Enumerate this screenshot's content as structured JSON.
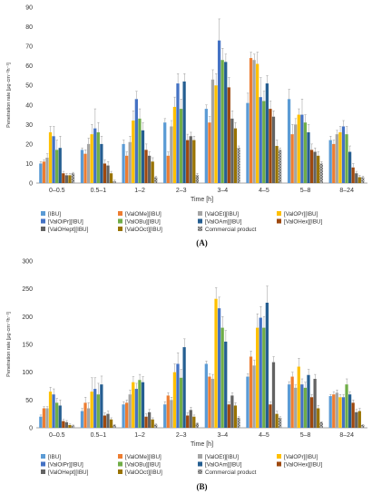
{
  "colors": {
    "IBU": "#5b9bd5",
    "ValOMe": "#ed7d31",
    "ValOEt": "#a5a5a5",
    "ValOPr": "#ffc000",
    "ValOiPr": "#4472c4",
    "ValOBu": "#70ad47",
    "ValOAm": "#255e91",
    "ValOHex": "#9e480e",
    "ValOHept": "#636363",
    "ValOOct": "#997300",
    "Commercial": "#5a5a5a"
  },
  "chart_data": [
    {
      "panel_label": "(A)",
      "type": "bar",
      "ylabel": "Penetration rate [μg·cm⁻²h⁻¹]",
      "xlabel": "Time [h]",
      "ylim": [
        0,
        90
      ],
      "yticks": [
        0,
        10,
        20,
        30,
        40,
        50,
        60,
        70,
        80,
        90
      ],
      "grid": false,
      "legend_position": "bottom",
      "categories": [
        "0–0.5",
        "0.5–1",
        "1–2",
        "2–3",
        "3–4",
        "4–5",
        "5–8",
        "8–24"
      ],
      "series": [
        {
          "name": "[IBU]",
          "values": [
            10,
            17,
            20,
            31,
            38,
            41,
            43,
            22
          ],
          "errors": [
            1,
            1,
            2,
            2,
            2,
            5,
            5,
            2
          ]
        },
        {
          "name": "[ValOMe][IBU]",
          "values": [
            11,
            15,
            14,
            14,
            31,
            64,
            25,
            20
          ],
          "errors": [
            1,
            2,
            2,
            2,
            3,
            3,
            5,
            2
          ]
        },
        {
          "name": "[ValOEt][IBU]",
          "values": [
            13,
            20,
            21,
            29,
            53,
            63,
            30,
            25
          ],
          "errors": [
            2,
            3,
            3,
            3,
            5,
            3,
            3,
            2
          ]
        },
        {
          "name": "[ValOPr][IBU]",
          "values": [
            26,
            25,
            32,
            39,
            50,
            61,
            35,
            26
          ],
          "errors": [
            3,
            5,
            5,
            5,
            6,
            6,
            3,
            3
          ]
        },
        {
          "name": "[ValOiPr][IBU]",
          "values": [
            24,
            28,
            43,
            51,
            73,
            44,
            35,
            29
          ],
          "errors": [
            5,
            10,
            4,
            5,
            11,
            10,
            8,
            3
          ]
        },
        {
          "name": "[ValOBu][IBU]",
          "values": [
            17,
            26,
            33,
            38,
            63,
            42,
            31,
            25
          ],
          "errors": [
            5,
            5,
            5,
            5,
            6,
            5,
            4,
            4
          ]
        },
        {
          "name": "[ValOAm][IBU]",
          "values": [
            18,
            20,
            27,
            52,
            62,
            51,
            26,
            16
          ],
          "errors": [
            6,
            4,
            4,
            4,
            4,
            4,
            4,
            3
          ]
        },
        {
          "name": "[ValOHex][IBU]",
          "values": [
            5,
            10,
            17,
            22,
            49,
            38,
            17,
            8
          ],
          "errors": [
            1,
            2,
            3,
            3,
            5,
            4,
            3,
            2
          ]
        },
        {
          "name": "[ValOHept][IBU]",
          "values": [
            4,
            9,
            14,
            24,
            33,
            34,
            16,
            5
          ],
          "errors": [
            1,
            2,
            2,
            2,
            4,
            3,
            2,
            1
          ]
        },
        {
          "name": "[ValOOct][IBU]",
          "values": [
            4,
            5,
            11,
            22,
            28,
            19,
            14,
            3
          ],
          "errors": [
            1,
            1,
            2,
            2,
            3,
            3,
            2,
            1
          ]
        },
        {
          "name": "Commercial product",
          "values": [
            5,
            1,
            3,
            4,
            18,
            17,
            10,
            3
          ],
          "errors": [
            0.5,
            0.5,
            0.5,
            1,
            1,
            1,
            1,
            0.5
          ]
        }
      ]
    },
    {
      "panel_label": "(B)",
      "type": "bar",
      "ylabel": "Penetration rate [μg·cm⁻²h⁻¹]",
      "xlabel": "Time [h]",
      "ylim": [
        0,
        300
      ],
      "yticks": [
        0,
        50,
        100,
        150,
        200,
        250,
        300
      ],
      "grid": false,
      "legend_position": "bottom",
      "categories": [
        "0–0.5",
        "0.5–1",
        "1–2",
        "2–3",
        "3–4",
        "4–5",
        "5–8",
        "8–24"
      ],
      "series": [
        {
          "name": "[IBU]",
          "values": [
            20,
            30,
            42,
            42,
            115,
            92,
            78,
            57
          ],
          "errors": [
            3,
            5,
            5,
            5,
            5,
            5,
            5,
            3
          ]
        },
        {
          "name": "[ValOMe][IBU]",
          "values": [
            35,
            45,
            45,
            58,
            92,
            128,
            92,
            60
          ],
          "errors": [
            3,
            10,
            5,
            5,
            5,
            10,
            8,
            5
          ]
        },
        {
          "name": "[ValOEt][IBU]",
          "values": [
            35,
            35,
            60,
            50,
            88,
            112,
            72,
            63
          ],
          "errors": [
            3,
            10,
            8,
            5,
            8,
            10,
            5,
            5
          ]
        },
        {
          "name": "[ValOPr][IBU]",
          "values": [
            65,
            65,
            82,
            100,
            232,
            180,
            110,
            55
          ],
          "errors": [
            8,
            25,
            10,
            15,
            20,
            25,
            15,
            5
          ]
        },
        {
          "name": "[ValOiPr][IBU]",
          "values": [
            60,
            70,
            70,
            115,
            215,
            198,
            78,
            55
          ],
          "errors": [
            10,
            20,
            10,
            20,
            20,
            20,
            10,
            5
          ]
        },
        {
          "name": "[ValOBu][IBU]",
          "values": [
            45,
            60,
            86,
            90,
            180,
            180,
            72,
            78
          ],
          "errors": [
            8,
            20,
            10,
            15,
            20,
            20,
            10,
            10
          ]
        },
        {
          "name": "[ValOAm][IBU]",
          "values": [
            40,
            78,
            82,
            145,
            155,
            225,
            95,
            60
          ],
          "errors": [
            10,
            15,
            10,
            15,
            20,
            30,
            10,
            5
          ]
        },
        {
          "name": "[ValOHex][IBU]",
          "values": [
            12,
            22,
            20,
            22,
            42,
            42,
            55,
            45
          ],
          "errors": [
            3,
            5,
            5,
            5,
            5,
            5,
            5,
            5
          ]
        },
        {
          "name": "[ValOHept][IBU]",
          "values": [
            10,
            25,
            28,
            32,
            58,
            118,
            88,
            28
          ],
          "errors": [
            3,
            5,
            5,
            5,
            5,
            10,
            8,
            5
          ]
        },
        {
          "name": "[ValOOct][IBU]",
          "values": [
            5,
            15,
            15,
            20,
            40,
            25,
            35,
            30
          ],
          "errors": [
            2,
            3,
            3,
            3,
            5,
            5,
            5,
            5
          ]
        },
        {
          "name": "Commercial product",
          "values": [
            4,
            5,
            6,
            8,
            18,
            18,
            10,
            5
          ],
          "errors": [
            1,
            1,
            1,
            1,
            2,
            2,
            1,
            1
          ]
        }
      ]
    }
  ]
}
